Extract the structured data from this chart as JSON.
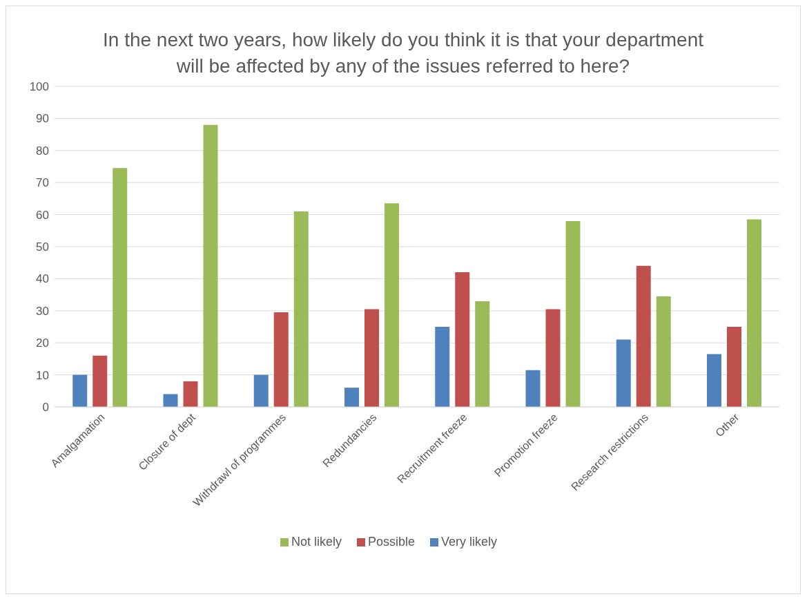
{
  "chart_data": {
    "type": "bar",
    "title": "In the next two years, how likely do you think it is that your department will be affected by any of the issues referred to here?",
    "categories": [
      "Amalgamation",
      "Closure of dept",
      "Withdrawl of programmes",
      "Redundancies",
      "Recruitment freeze",
      "Promotion freeze",
      "Research restrictions",
      "Other"
    ],
    "series": [
      {
        "name": "Very likely",
        "color": "#4f81bd",
        "values": [
          10,
          4,
          10,
          6,
          25,
          11.5,
          21,
          16.5
        ]
      },
      {
        "name": "Possible",
        "color": "#c0504d",
        "values": [
          16,
          8,
          29.5,
          30.5,
          42,
          30.5,
          44,
          25
        ]
      },
      {
        "name": "Not likely",
        "color": "#9bbb59",
        "values": [
          74.5,
          88,
          61,
          63.5,
          33,
          58,
          34.5,
          58.5
        ]
      }
    ],
    "ylim": [
      0,
      100
    ],
    "yticks": [
      0,
      10,
      20,
      30,
      40,
      50,
      60,
      70,
      80,
      90,
      100
    ],
    "grid": "y",
    "legend": "bottom"
  }
}
